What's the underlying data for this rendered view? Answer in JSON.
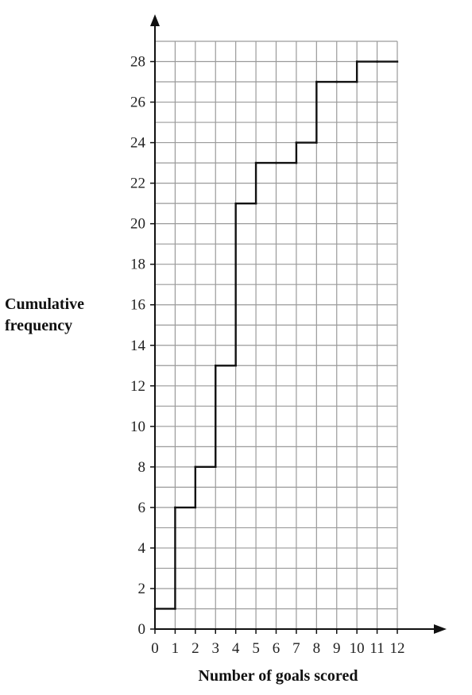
{
  "chart_data": {
    "type": "line",
    "style": "step",
    "xlabel": "Number of goals scored",
    "ylabel_lines": [
      "Cumulative",
      "frequency"
    ],
    "xlim": [
      0,
      12
    ],
    "ylim": [
      0,
      29
    ],
    "grid": true,
    "x_ticks": [
      0,
      1,
      2,
      3,
      4,
      5,
      6,
      7,
      8,
      9,
      10,
      11,
      12
    ],
    "y_ticks": [
      0,
      2,
      4,
      6,
      8,
      10,
      12,
      14,
      16,
      18,
      20,
      22,
      24,
      26,
      28
    ],
    "series": [
      {
        "x_start": [
          0,
          1,
          2,
          3,
          4,
          5,
          6,
          7,
          8,
          9,
          10,
          11
        ],
        "x_end": [
          1,
          2,
          3,
          4,
          5,
          6,
          7,
          8,
          9,
          10,
          11,
          12
        ],
        "values": [
          1,
          6,
          8,
          13,
          21,
          23,
          23,
          24,
          27,
          27,
          28,
          28
        ]
      }
    ]
  }
}
